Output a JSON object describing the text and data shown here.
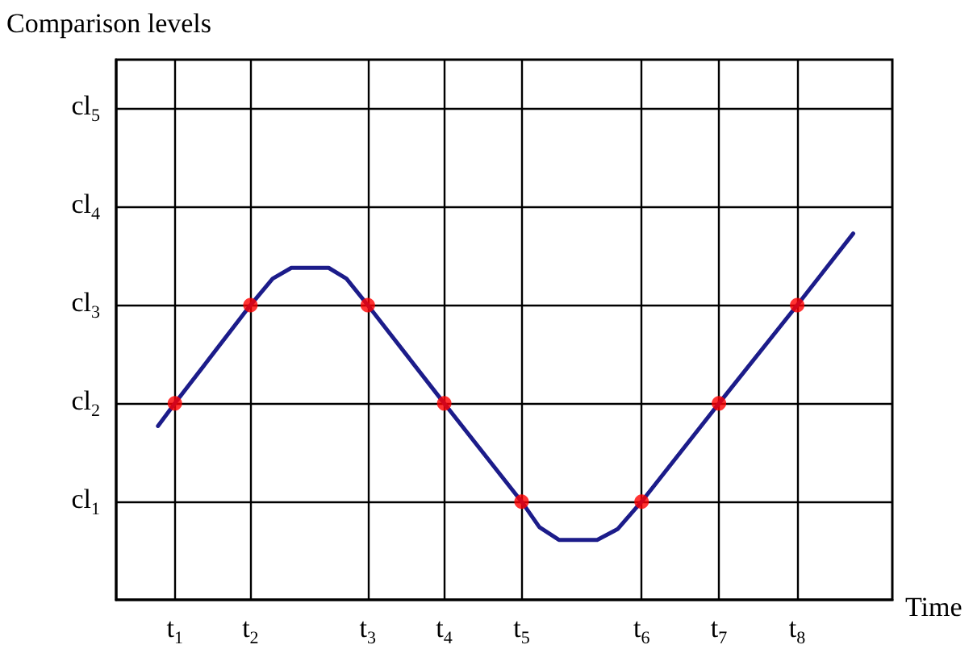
{
  "chart_data": {
    "type": "line",
    "xlabel": "Time",
    "ylabel": "Comparison levels",
    "xlim": [
      0.34,
      9.07
    ],
    "ylim": [
      0,
      5.5
    ],
    "xticks": [
      {
        "value": 1,
        "label": "t$_{1}$"
      },
      {
        "value": 1.85,
        "label": "t$_{2}$"
      },
      {
        "value": 3.17,
        "label": "t$_{3}$"
      },
      {
        "value": 4.03,
        "label": "t$_{4}$"
      },
      {
        "value": 4.9,
        "label": "t$_{5}$"
      },
      {
        "value": 6.25,
        "label": "t$_{6}$"
      },
      {
        "value": 7.12,
        "label": "t$_{7}$"
      },
      {
        "value": 8.0,
        "label": "t$_{8}$"
      }
    ],
    "yticks": [
      {
        "value": 1,
        "label": "cl$_{1}$"
      },
      {
        "value": 2,
        "label": "cl$_{2}$"
      },
      {
        "value": 3,
        "label": "cl$_{3}$"
      },
      {
        "value": 4,
        "label": "cl$_{4}$"
      },
      {
        "value": 5,
        "label": "cl$_{5}$"
      }
    ],
    "grid": true,
    "series": [
      {
        "color": "#1c1c8a",
        "marker": "none",
        "x": [
          0.81,
          1,
          1.85,
          2.1,
          2.31,
          2.73,
          2.93,
          3.17,
          4.03,
          4.9,
          5.1,
          5.32,
          5.75,
          5.98,
          6.25,
          7.12,
          8.0,
          8.63
        ],
        "values": [
          1.77,
          2,
          3,
          3.27,
          3.38,
          3.38,
          3.27,
          3,
          2,
          1,
          0.74,
          0.61,
          0.61,
          0.72,
          1,
          2,
          3,
          3.73
        ]
      },
      {
        "type": "scatter",
        "color": "#ff0000",
        "marker": "circle",
        "x": [
          1,
          1.85,
          3.17,
          4.03,
          4.9,
          6.25,
          7.12,
          8.0
        ],
        "values": [
          2,
          3,
          3,
          2,
          1,
          1,
          2,
          3
        ]
      }
    ]
  }
}
